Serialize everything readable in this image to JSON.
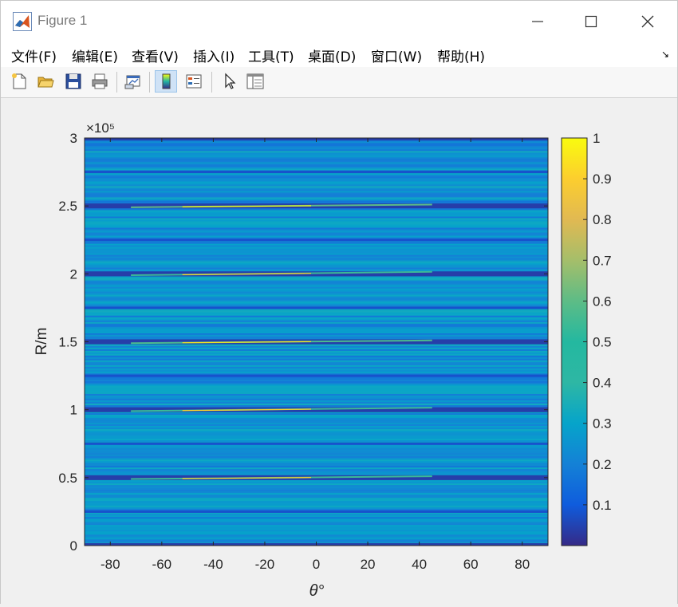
{
  "window": {
    "title": "Figure 1",
    "minimize_icon": "minimize-icon",
    "maximize_icon": "maximize-icon",
    "close_icon": "close-icon"
  },
  "menu": {
    "items": [
      {
        "label": "文件(F)"
      },
      {
        "label": "编辑(E)"
      },
      {
        "label": "查看(V)"
      },
      {
        "label": "插入(I)"
      },
      {
        "label": "工具(T)"
      },
      {
        "label": "桌面(D)"
      },
      {
        "label": "窗口(W)"
      },
      {
        "label": "帮助(H)"
      }
    ],
    "dock_arrow": "↘"
  },
  "toolbar": {
    "icons": [
      "new-figure-icon",
      "open-file-icon",
      "save-icon",
      "print-icon",
      "link-plot-icon",
      "colorbar-icon",
      "legend-icon",
      "pointer-icon",
      "property-inspector-icon"
    ]
  },
  "chart_data": {
    "type": "heatmap",
    "xlabel": "θ°",
    "ylabel": "R/m",
    "xlim": [
      -90,
      90
    ],
    "ylim": [
      0,
      300000
    ],
    "x_ticks": [
      -80,
      -60,
      -40,
      -20,
      0,
      20,
      40,
      60,
      80
    ],
    "y_ticks": [
      0,
      0.5,
      1,
      1.5,
      2,
      2.5,
      3
    ],
    "y_exponent": "×10⁵",
    "colormap": "parula",
    "colorbar": {
      "ticks": [
        0.1,
        0.2,
        0.3,
        0.4,
        0.5,
        0.6,
        0.7,
        0.8,
        0.9,
        1
      ],
      "clim": [
        0,
        1
      ]
    },
    "background_level": 0.25,
    "dark_bands_y": [
      0,
      50000,
      100000,
      150000,
      200000,
      250000,
      300000
    ],
    "minor_dark_bands_y": [
      25000,
      75000,
      125000,
      175000,
      225000,
      275000
    ],
    "peak_ridges": [
      {
        "y_start": 49000,
        "y_end": 51000,
        "peak_value": 0.9
      },
      {
        "y_start": 99000,
        "y_end": 101500,
        "peak_value": 0.9
      },
      {
        "y_start": 149000,
        "y_end": 151000,
        "peak_value": 0.95
      },
      {
        "y_start": 199000,
        "y_end": 201500,
        "peak_value": 0.9
      },
      {
        "y_start": 249000,
        "y_end": 251000,
        "peak_value": 1.0
      }
    ]
  }
}
